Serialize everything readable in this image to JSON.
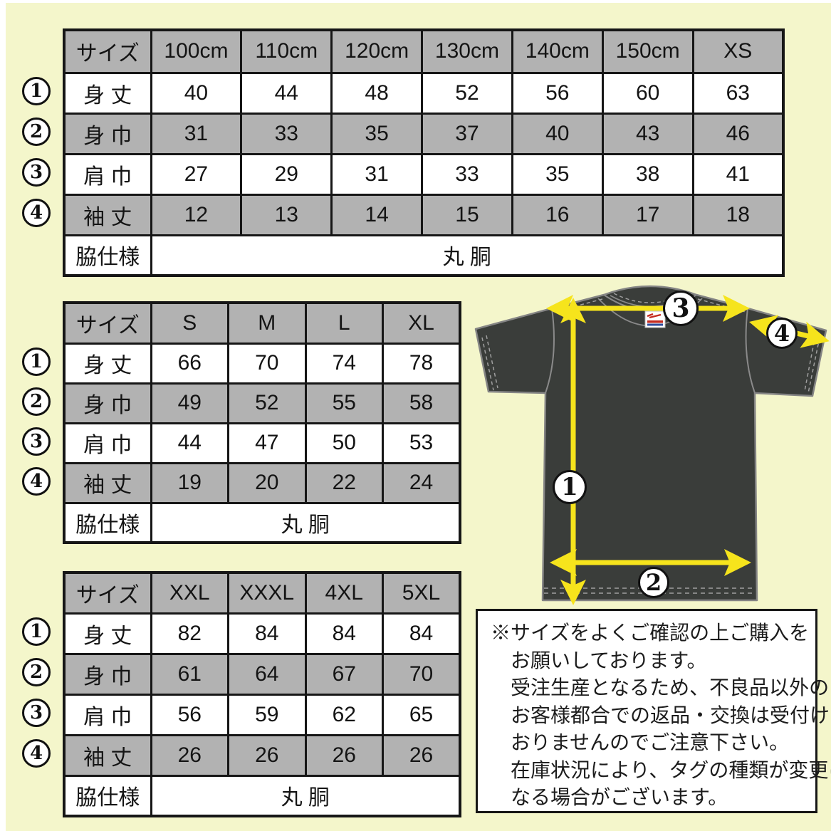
{
  "page": {
    "background": "#f4f6cb",
    "table_gray": "#b2b2b2",
    "arrow_yellow": "#f6e41c",
    "shirt_color": "#3a3d3a"
  },
  "tables": [
    {
      "id": "kids",
      "header": [
        "サイズ",
        "100cm",
        "110cm",
        "120cm",
        "130cm",
        "140cm",
        "150cm",
        "XS"
      ],
      "rows": [
        {
          "num": "1",
          "label": "身 丈",
          "values": [
            "40",
            "44",
            "48",
            "52",
            "56",
            "60",
            "63"
          ]
        },
        {
          "num": "2",
          "label": "身 巾",
          "values": [
            "31",
            "33",
            "35",
            "37",
            "40",
            "43",
            "46"
          ]
        },
        {
          "num": "3",
          "label": "肩 巾",
          "values": [
            "27",
            "29",
            "31",
            "33",
            "35",
            "38",
            "41"
          ]
        },
        {
          "num": "4",
          "label": "袖 丈",
          "values": [
            "12",
            "13",
            "14",
            "15",
            "16",
            "17",
            "18"
          ]
        }
      ],
      "footer_label": "脇仕様",
      "footer_value": "丸 胴"
    },
    {
      "id": "adult",
      "header": [
        "サイズ",
        "S",
        "M",
        "L",
        "XL"
      ],
      "rows": [
        {
          "num": "1",
          "label": "身 丈",
          "values": [
            "66",
            "70",
            "74",
            "78"
          ]
        },
        {
          "num": "2",
          "label": "身 巾",
          "values": [
            "49",
            "52",
            "55",
            "58"
          ]
        },
        {
          "num": "3",
          "label": "肩 巾",
          "values": [
            "44",
            "47",
            "50",
            "53"
          ]
        },
        {
          "num": "4",
          "label": "袖 丈",
          "values": [
            "19",
            "20",
            "22",
            "24"
          ]
        }
      ],
      "footer_label": "脇仕様",
      "footer_value": "丸 胴"
    },
    {
      "id": "big",
      "header": [
        "サイズ",
        "XXL",
        "XXXL",
        "4XL",
        "5XL"
      ],
      "rows": [
        {
          "num": "1",
          "label": "身 丈",
          "values": [
            "82",
            "84",
            "84",
            "84"
          ]
        },
        {
          "num": "2",
          "label": "身 巾",
          "values": [
            "61",
            "64",
            "67",
            "70"
          ]
        },
        {
          "num": "3",
          "label": "肩 巾",
          "values": [
            "56",
            "59",
            "62",
            "65"
          ]
        },
        {
          "num": "4",
          "label": "袖 丈",
          "values": [
            "26",
            "26",
            "26",
            "26"
          ]
        }
      ],
      "footer_label": "脇仕様",
      "footer_value": "丸 胴"
    }
  ],
  "diagram": {
    "badge_1": "1",
    "badge_2": "2",
    "badge_3": "3",
    "badge_4": "4"
  },
  "notice": {
    "lines": [
      "※サイズをよくご確認の上ご購入を",
      "お願いしております。",
      "受注生産となるため、不良品以外の",
      "お客様都合での返品・交換は受付けて",
      "おりませんのでご注意下さい。",
      "在庫状況により、タグの種類が変更に",
      "なる場合がございます。"
    ]
  }
}
